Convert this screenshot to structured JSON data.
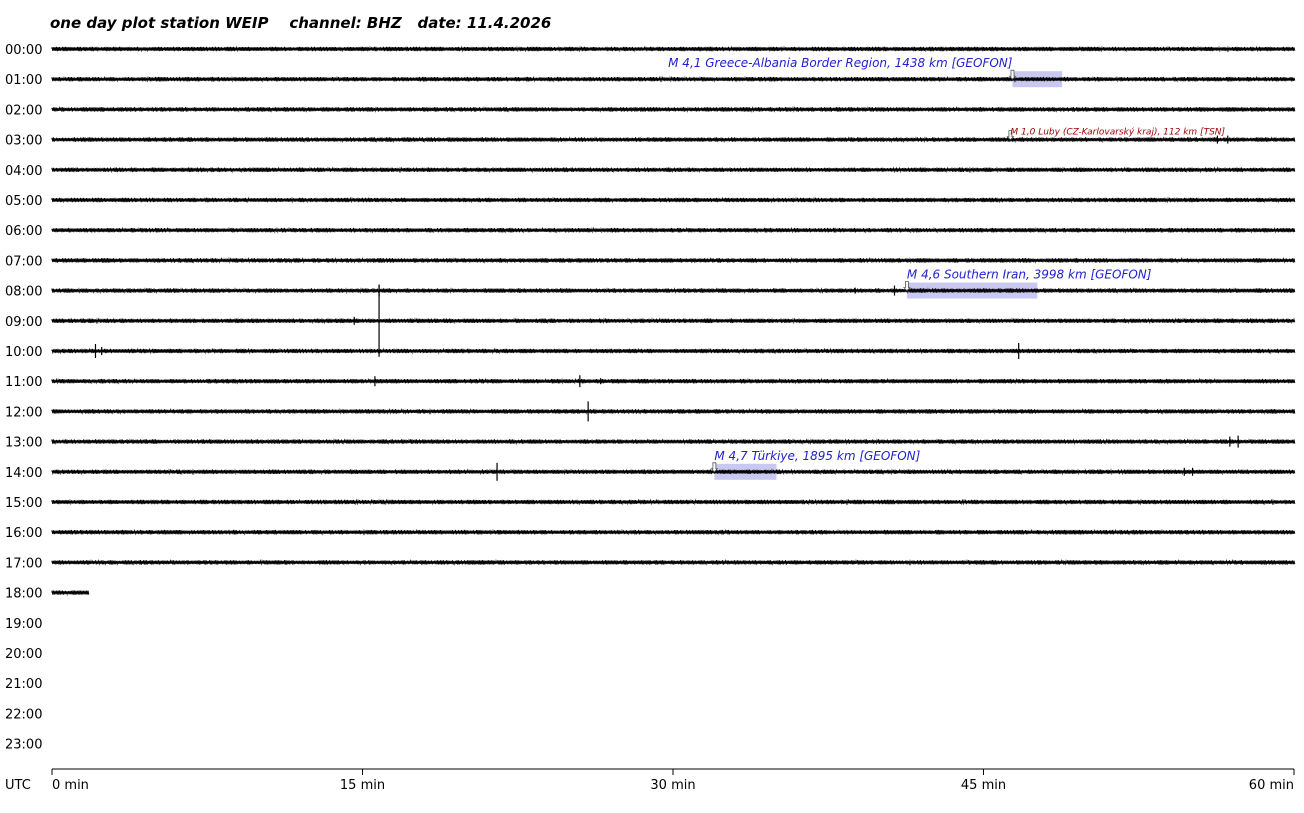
{
  "chart_data": {
    "type": "line",
    "title": "one day plot station WEIP    channel: BHZ   date: 11.4.2026",
    "station": "WEIP",
    "channel": "BHZ",
    "date": "11.4.2026",
    "xunit_label": "UTC",
    "xlim": [
      0,
      60
    ],
    "xticks": [
      {
        "value": 0,
        "label": "0 min"
      },
      {
        "value": 15,
        "label": "15 min"
      },
      {
        "value": 30,
        "label": "30 min"
      },
      {
        "value": 45,
        "label": "45 min"
      },
      {
        "value": 60,
        "label": "60 min"
      }
    ],
    "hours": [
      "00:00",
      "01:00",
      "02:00",
      "03:00",
      "04:00",
      "05:00",
      "06:00",
      "07:00",
      "08:00",
      "09:00",
      "10:00",
      "11:00",
      "12:00",
      "13:00",
      "14:00",
      "15:00",
      "16:00",
      "17:00",
      "18:00",
      "19:00",
      "20:00",
      "21:00",
      "22:00",
      "23:00"
    ],
    "recorded_until": {
      "hour": 18,
      "minute": 1.8
    },
    "events": [
      {
        "label": "M 4,1 Greece-Albania Border Region, 1438 km  [GEOFON]",
        "hour": 1,
        "start_min": 46.4,
        "end_min": 48.8,
        "highlight": true,
        "small": false
      },
      {
        "label": "M 1,0 Luby (CZ-Karlovarský kraj), 112 km  [TSN]",
        "hour": 3,
        "start_min": 46.3,
        "end_min": 46.6,
        "highlight": false,
        "small": true
      },
      {
        "label": "M 4,6 Southern Iran, 3998 km  [GEOFON]",
        "hour": 8,
        "start_min": 41.3,
        "end_min": 47.6,
        "highlight": true,
        "small": false
      },
      {
        "label": "M 4,7 Türkiye, 1895 km  [GEOFON]",
        "hour": 14,
        "start_min": 32.0,
        "end_min": 35.0,
        "highlight": true,
        "small": false
      }
    ],
    "spikes": [
      {
        "hour": 3,
        "minute": 56.3,
        "amp": 4
      },
      {
        "hour": 3,
        "minute": 56.8,
        "amp": 4
      },
      {
        "hour": 8,
        "minute": 15.8,
        "amp": 6
      },
      {
        "hour": 8,
        "minute": 38.8,
        "amp": 3
      },
      {
        "hour": 8,
        "minute": 40.7,
        "amp": 5
      },
      {
        "hour": 9,
        "minute": 15.8,
        "amp": 36
      },
      {
        "hour": 9,
        "minute": 14.6,
        "amp": 4
      },
      {
        "hour": 10,
        "minute": 2.1,
        "amp": 7
      },
      {
        "hour": 10,
        "minute": 2.4,
        "amp": 4
      },
      {
        "hour": 10,
        "minute": 46.7,
        "amp": 8
      },
      {
        "hour": 11,
        "minute": 15.6,
        "amp": 5
      },
      {
        "hour": 11,
        "minute": 25.5,
        "amp": 6
      },
      {
        "hour": 11,
        "minute": 26.5,
        "amp": 3
      },
      {
        "hour": 12,
        "minute": 25.9,
        "amp": 10
      },
      {
        "hour": 13,
        "minute": 56.9,
        "amp": 5
      },
      {
        "hour": 13,
        "minute": 57.3,
        "amp": 6
      },
      {
        "hour": 14,
        "minute": 21.5,
        "amp": 9
      },
      {
        "hour": 14,
        "minute": 54.7,
        "amp": 4
      },
      {
        "hour": 14,
        "minute": 55.1,
        "amp": 4
      }
    ],
    "colors": {
      "trace": "#000000",
      "event_text": "#2222cc",
      "event_text_small": "#990000",
      "event_highlight": "#c8c8f0"
    },
    "grid": false
  }
}
